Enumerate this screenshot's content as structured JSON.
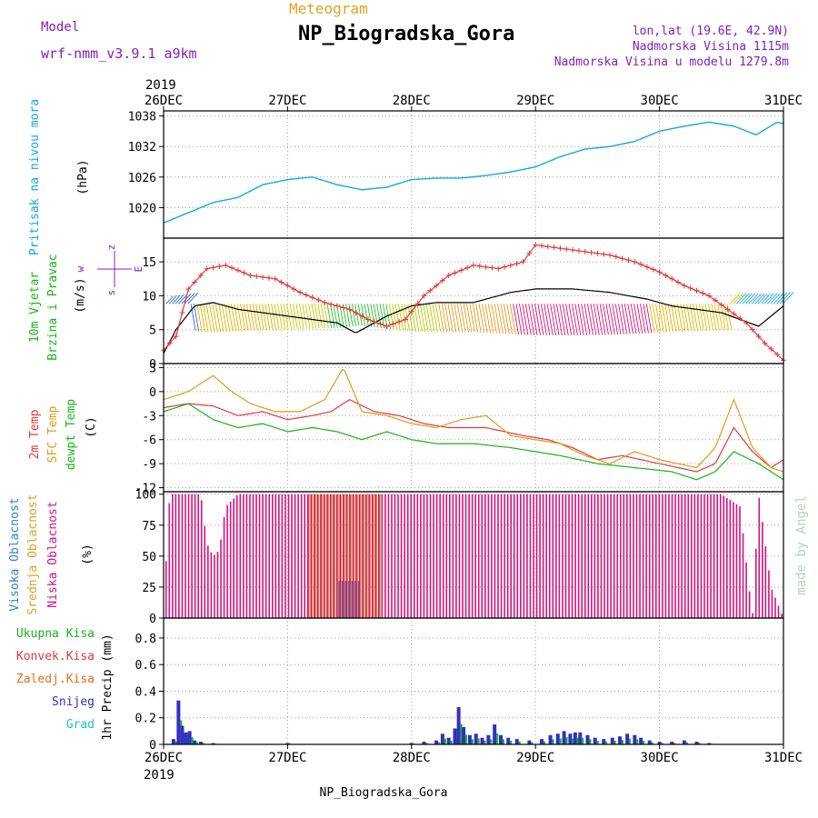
{
  "header": {
    "model_label": "Model",
    "model_name": "wrf-nmm_v3.9.1  a9km",
    "meteogram_label": "Meteogram",
    "station_title": "NP_Biogradska_Gora",
    "lonlat": "lon,lat (19.6E, 42.9N)",
    "elevation": "Nadmorska Visina 1115m",
    "model_elevation": "Nadmorska Visina u modelu 1279.8m",
    "footer_station": "NP_Biogradska_Gora",
    "credit": "made by Angel"
  },
  "colors": {
    "pressure": "#10a8e6",
    "wind_speed": "#e23a3a",
    "wind_mean": "#000000",
    "temp_2m": "#e23a3a",
    "temp_sfc": "#e09a1a",
    "temp_dew": "#19b419",
    "cloud_high": "#2f7fd0",
    "cloud_mid": "#e0a020",
    "cloud_low": "#d6127a",
    "precip_total": "#19b419",
    "precip_conv": "#e23a3a",
    "precip_frz": "#e07020",
    "precip_snow": "#3030c0",
    "precip_grad": "#20c0c0",
    "labels_purple": "#8020c0",
    "grid": "#999999"
  },
  "chart_data": [
    {
      "type": "line",
      "id": "pressure",
      "ylabel": "(hPa)",
      "side_label": "Pritisak na nivou mora",
      "x_range": [
        0,
        5
      ],
      "x_ticks": [
        "26DEC",
        "27DEC",
        "28DEC",
        "29DEC",
        "30DEC",
        "31DEC"
      ],
      "x_year": "2019",
      "ylim": [
        1014,
        1039
      ],
      "y_ticks": [
        "1020",
        "1026",
        "1032",
        "1038"
      ],
      "series": [
        {
          "key": "slp",
          "values": [
            [
              0,
              1017
            ],
            [
              0.15,
              1018.5
            ],
            [
              0.4,
              1021
            ],
            [
              0.6,
              1022
            ],
            [
              0.8,
              1024.5
            ],
            [
              1.0,
              1025.5
            ],
            [
              1.2,
              1026
            ],
            [
              1.4,
              1024.5
            ],
            [
              1.6,
              1023.5
            ],
            [
              1.8,
              1024
            ],
            [
              2.0,
              1025.5
            ],
            [
              2.2,
              1025.8
            ],
            [
              2.4,
              1025.8
            ],
            [
              2.6,
              1026.3
            ],
            [
              2.8,
              1027
            ],
            [
              3.0,
              1028
            ],
            [
              3.2,
              1030
            ],
            [
              3.4,
              1031.5
            ],
            [
              3.6,
              1032
            ],
            [
              3.8,
              1033
            ],
            [
              4.0,
              1035
            ],
            [
              4.2,
              1036
            ],
            [
              4.4,
              1036.8
            ],
            [
              4.6,
              1036
            ],
            [
              4.78,
              1034.3
            ],
            [
              4.95,
              1036.8
            ],
            [
              5.0,
              1036.5
            ]
          ]
        }
      ]
    },
    {
      "type": "line",
      "id": "wind",
      "ylabel": "(m/s)",
      "side_label_1": "10m Vjetar",
      "side_label_2": "Brzina i Pravac",
      "compass_n": "z",
      "compass_w": "w",
      "compass_e": "E",
      "compass_s": "s",
      "ylim": [
        0,
        18.5
      ],
      "y_ticks": [
        "0",
        "5",
        "10",
        "15"
      ],
      "series": [
        {
          "key": "speed",
          "values": [
            [
              0,
              2
            ],
            [
              0.1,
              4
            ],
            [
              0.2,
              11
            ],
            [
              0.35,
              14
            ],
            [
              0.5,
              14.5
            ],
            [
              0.7,
              13
            ],
            [
              0.9,
              12.5
            ],
            [
              1.1,
              10.5
            ],
            [
              1.3,
              9
            ],
            [
              1.5,
              8
            ],
            [
              1.65,
              6.5
            ],
            [
              1.8,
              5.5
            ],
            [
              1.95,
              6.5
            ],
            [
              2.1,
              10
            ],
            [
              2.3,
              13
            ],
            [
              2.5,
              14.5
            ],
            [
              2.7,
              14
            ],
            [
              2.9,
              15
            ],
            [
              3.0,
              17.5
            ],
            [
              3.2,
              17
            ],
            [
              3.4,
              16.5
            ],
            [
              3.6,
              16
            ],
            [
              3.8,
              15
            ],
            [
              4.0,
              13.5
            ],
            [
              4.2,
              11.5
            ],
            [
              4.4,
              10
            ],
            [
              4.55,
              8
            ],
            [
              4.7,
              6
            ],
            [
              4.85,
              3
            ],
            [
              5.0,
              0.5
            ]
          ]
        },
        {
          "key": "mean",
          "values": [
            [
              0,
              1.5
            ],
            [
              0.1,
              5
            ],
            [
              0.25,
              8.5
            ],
            [
              0.4,
              9
            ],
            [
              0.6,
              8
            ],
            [
              0.8,
              7.5
            ],
            [
              1.0,
              7
            ],
            [
              1.2,
              6.5
            ],
            [
              1.4,
              6
            ],
            [
              1.55,
              4.5
            ],
            [
              1.65,
              5.5
            ],
            [
              1.8,
              7
            ],
            [
              2.0,
              8.5
            ],
            [
              2.2,
              9
            ],
            [
              2.5,
              9
            ],
            [
              2.8,
              10.5
            ],
            [
              3.0,
              11
            ],
            [
              3.3,
              11
            ],
            [
              3.6,
              10.5
            ],
            [
              3.9,
              9.5
            ],
            [
              4.1,
              8.5
            ],
            [
              4.3,
              8
            ],
            [
              4.5,
              7.5
            ],
            [
              4.65,
              6.5
            ],
            [
              4.8,
              5.5
            ],
            [
              5.0,
              8.5
            ]
          ]
        }
      ]
    },
    {
      "type": "line",
      "id": "temperature",
      "ylabel": "(C)",
      "side_label_2m": "2m Temp",
      "side_label_sfc": "SFC Temp",
      "side_label_dew": "dewpt Temp",
      "ylim": [
        -12.5,
        3.5
      ],
      "y_ticks": [
        "-12",
        "-9",
        "-6",
        "-3",
        "0",
        "3"
      ],
      "series": [
        {
          "key": "t2m",
          "values": [
            [
              0,
              -2
            ],
            [
              0.2,
              -1.5
            ],
            [
              0.4,
              -1.8
            ],
            [
              0.6,
              -3
            ],
            [
              0.8,
              -2.5
            ],
            [
              1.0,
              -3.5
            ],
            [
              1.2,
              -3
            ],
            [
              1.35,
              -2.5
            ],
            [
              1.5,
              -1
            ],
            [
              1.7,
              -2.5
            ],
            [
              1.9,
              -3
            ],
            [
              2.1,
              -4
            ],
            [
              2.3,
              -4.5
            ],
            [
              2.6,
              -4.5
            ],
            [
              2.9,
              -5.5
            ],
            [
              3.1,
              -6
            ],
            [
              3.3,
              -7
            ],
            [
              3.5,
              -8.5
            ],
            [
              3.7,
              -8
            ],
            [
              4.0,
              -9
            ],
            [
              4.3,
              -10
            ],
            [
              4.45,
              -9
            ],
            [
              4.6,
              -4.5
            ],
            [
              4.75,
              -7.5
            ],
            [
              4.9,
              -9.5
            ],
            [
              5.0,
              -8.5
            ]
          ]
        },
        {
          "key": "tsfc",
          "values": [
            [
              0,
              -1
            ],
            [
              0.2,
              0
            ],
            [
              0.4,
              2
            ],
            [
              0.55,
              0
            ],
            [
              0.7,
              -1.5
            ],
            [
              0.9,
              -2.5
            ],
            [
              1.1,
              -2.5
            ],
            [
              1.3,
              -1
            ],
            [
              1.45,
              3
            ],
            [
              1.6,
              -2.5
            ],
            [
              1.8,
              -3
            ],
            [
              2.0,
              -4
            ],
            [
              2.2,
              -4.5
            ],
            [
              2.4,
              -3.5
            ],
            [
              2.6,
              -3
            ],
            [
              2.8,
              -5.5
            ],
            [
              3.0,
              -6
            ],
            [
              3.2,
              -6.5
            ],
            [
              3.4,
              -8
            ],
            [
              3.6,
              -9
            ],
            [
              3.8,
              -7.5
            ],
            [
              4.0,
              -8.5
            ],
            [
              4.3,
              -9.5
            ],
            [
              4.45,
              -7
            ],
            [
              4.6,
              -1
            ],
            [
              4.75,
              -7
            ],
            [
              4.9,
              -9.5
            ],
            [
              5.0,
              -10
            ]
          ]
        },
        {
          "key": "dew",
          "values": [
            [
              0,
              -2.5
            ],
            [
              0.2,
              -1.5
            ],
            [
              0.4,
              -3.5
            ],
            [
              0.6,
              -4.5
            ],
            [
              0.8,
              -4
            ],
            [
              1.0,
              -5
            ],
            [
              1.2,
              -4.5
            ],
            [
              1.4,
              -5
            ],
            [
              1.6,
              -6
            ],
            [
              1.8,
              -5
            ],
            [
              2.0,
              -6
            ],
            [
              2.2,
              -6.5
            ],
            [
              2.5,
              -6.5
            ],
            [
              2.8,
              -7
            ],
            [
              3.0,
              -7.5
            ],
            [
              3.2,
              -8
            ],
            [
              3.5,
              -9
            ],
            [
              3.8,
              -9.5
            ],
            [
              4.1,
              -10
            ],
            [
              4.3,
              -11
            ],
            [
              4.45,
              -10
            ],
            [
              4.6,
              -7.5
            ],
            [
              4.8,
              -9
            ],
            [
              5.0,
              -11
            ]
          ]
        }
      ]
    },
    {
      "type": "bar",
      "id": "clouds",
      "ylabel": "(%)",
      "side_label_high": "Visoka Oblacnost",
      "side_label_mid": "Srednja Oblacnost",
      "side_label_low": "Niska Oblacnost",
      "ylim": [
        0,
        102
      ],
      "y_ticks": [
        "0",
        "25",
        "50",
        "75",
        "100"
      ],
      "low_profile": [
        [
          0,
          10
        ],
        [
          0.05,
          100
        ],
        [
          0.3,
          100
        ],
        [
          0.35,
          60
        ],
        [
          0.4,
          50
        ],
        [
          0.45,
          55
        ],
        [
          0.5,
          90
        ],
        [
          0.6,
          100
        ],
        [
          4.5,
          100
        ],
        [
          4.65,
          90
        ],
        [
          4.75,
          0
        ],
        [
          4.8,
          100
        ],
        [
          4.9,
          25
        ],
        [
          5.0,
          0
        ]
      ],
      "mid_segment": [
        1.15,
        1.75,
        100
      ],
      "high_segment": [
        1.4,
        1.6,
        30
      ]
    },
    {
      "type": "bar",
      "id": "precip",
      "ylabel": "1hr Precip (mm)",
      "side_label_total": "Ukupna Kisa",
      "side_label_conv": "Konvek.Kisa",
      "side_label_frz": "Zaledj.Kisa",
      "side_label_snow": "Snijeg",
      "side_label_grad": "Grad",
      "ylim": [
        0,
        0.95
      ],
      "y_ticks": [
        "0",
        "0.2",
        "0.4",
        "0.6",
        "0.8"
      ],
      "x_tick_labels": [
        "26DEC",
        "27DEC",
        "28DEC",
        "29DEC",
        "30DEC",
        "31DEC"
      ],
      "x_year": "2019",
      "bars": [
        [
          0.08,
          0.04
        ],
        [
          0.12,
          0.33
        ],
        [
          0.15,
          0.14
        ],
        [
          0.18,
          0.09
        ],
        [
          0.21,
          0.1
        ],
        [
          0.25,
          0.03
        ],
        [
          0.3,
          0.02
        ],
        [
          0.4,
          0.01
        ],
        [
          1.0,
          0.01
        ],
        [
          2.0,
          0.01
        ],
        [
          2.1,
          0.02
        ],
        [
          2.2,
          0.03
        ],
        [
          2.25,
          0.08
        ],
        [
          2.3,
          0.05
        ],
        [
          2.35,
          0.12
        ],
        [
          2.38,
          0.28
        ],
        [
          2.42,
          0.13
        ],
        [
          2.47,
          0.07
        ],
        [
          2.52,
          0.08
        ],
        [
          2.57,
          0.05
        ],
        [
          2.62,
          0.07
        ],
        [
          2.67,
          0.15
        ],
        [
          2.72,
          0.07
        ],
        [
          2.78,
          0.05
        ],
        [
          2.85,
          0.04
        ],
        [
          2.95,
          0.03
        ],
        [
          3.05,
          0.04
        ],
        [
          3.12,
          0.07
        ],
        [
          3.18,
          0.08
        ],
        [
          3.23,
          0.1
        ],
        [
          3.28,
          0.08
        ],
        [
          3.32,
          0.09
        ],
        [
          3.36,
          0.09
        ],
        [
          3.42,
          0.07
        ],
        [
          3.48,
          0.05
        ],
        [
          3.55,
          0.04
        ],
        [
          3.62,
          0.05
        ],
        [
          3.68,
          0.06
        ],
        [
          3.74,
          0.08
        ],
        [
          3.8,
          0.07
        ],
        [
          3.85,
          0.05
        ],
        [
          3.92,
          0.03
        ],
        [
          4.0,
          0.02
        ],
        [
          4.1,
          0.02
        ],
        [
          4.2,
          0.03
        ],
        [
          4.3,
          0.02
        ],
        [
          4.4,
          0.01
        ]
      ]
    }
  ]
}
